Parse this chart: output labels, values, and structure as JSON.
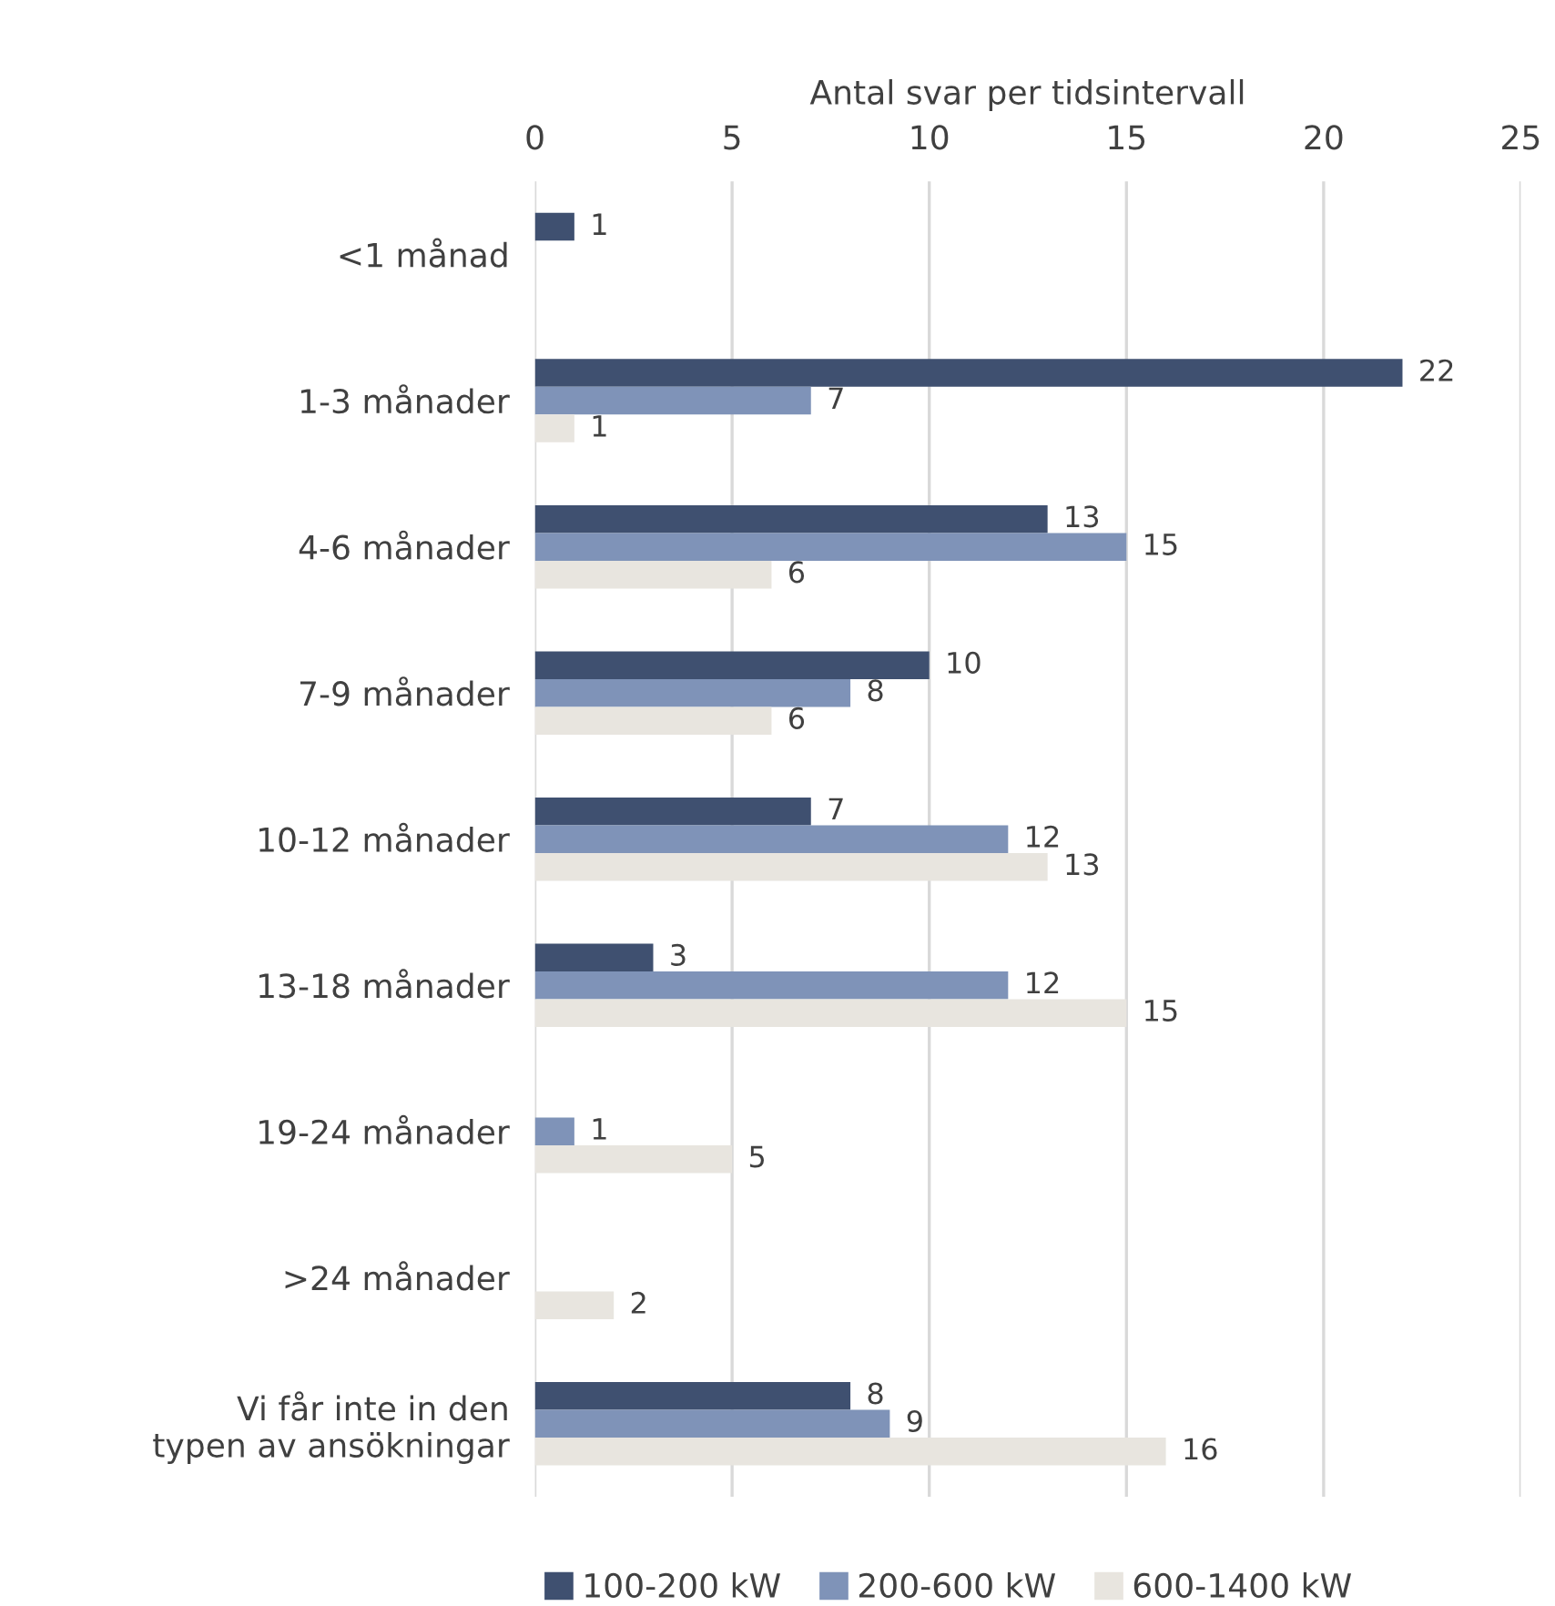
{
  "chart_data": {
    "type": "bar",
    "orientation": "horizontal",
    "xlabel": "Antal svar per tidsintervall",
    "categories": [
      "<1 månad",
      "1-3 månader",
      "4-6 månader",
      "7-9 månader",
      "10-12 månader",
      "13-18 månader",
      "19-24 månader",
      ">24 månader",
      "Vi får inte in den\ntypen av ansökningar"
    ],
    "series": [
      {
        "name": "100-200 kW",
        "color": "#3f5070",
        "values": [
          1,
          22,
          13,
          10,
          7,
          3,
          null,
          null,
          8
        ]
      },
      {
        "name": "200-600 kW",
        "color": "#7f93b8",
        "values": [
          null,
          7,
          15,
          8,
          12,
          12,
          1,
          null,
          9
        ]
      },
      {
        "name": "600-1400 kW",
        "color": "#e8e5df",
        "values": [
          null,
          1,
          6,
          6,
          13,
          15,
          5,
          2,
          16
        ]
      }
    ],
    "xlim": [
      0,
      25
    ],
    "xticks": [
      0,
      5,
      10,
      15,
      20,
      25
    ],
    "grid": "x",
    "legend": "bottom",
    "data_labels": true
  }
}
